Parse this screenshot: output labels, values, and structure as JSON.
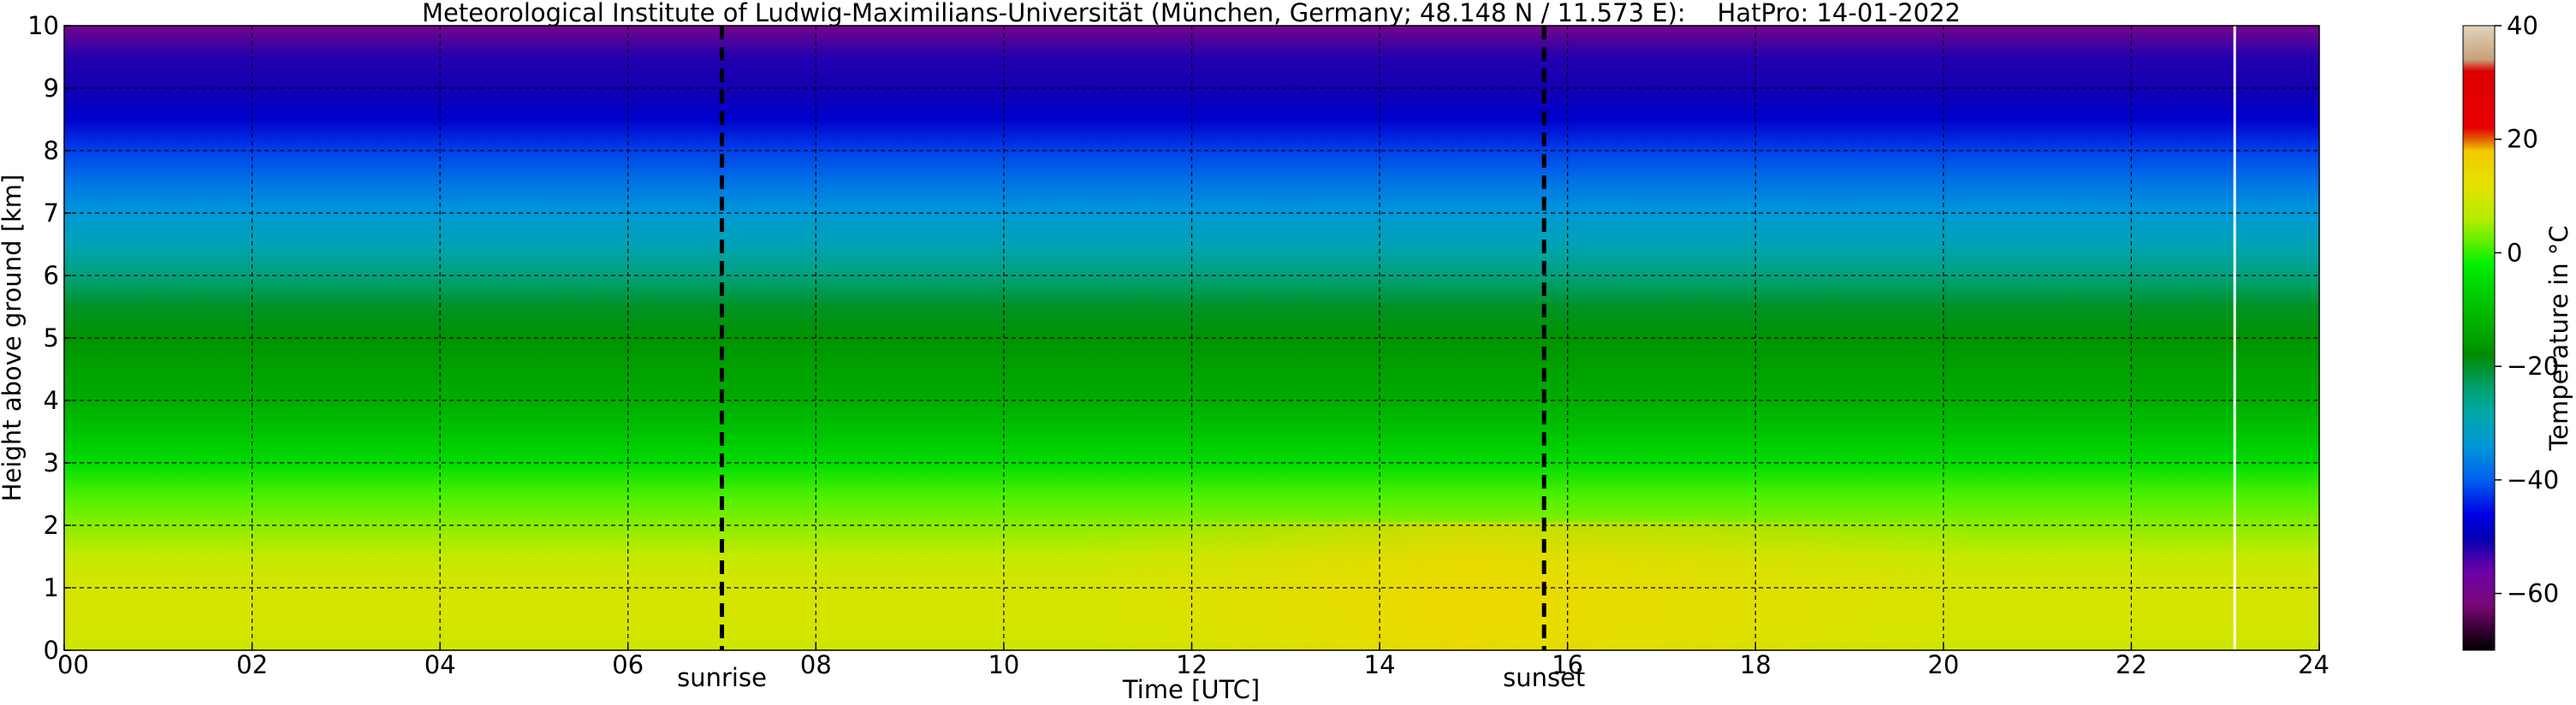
{
  "chart_data": {
    "type": "heatmap",
    "title": "Meteorological Institute of Ludwig-Maximilians-Universität (München, Germany; 48.148 N / 11.573 E):    HatPro: 14-01-2022",
    "xlabel": "Time [UTC]",
    "ylabel": "Height above ground [km]",
    "xlim": [
      0,
      24
    ],
    "ylim": [
      0,
      10
    ],
    "x_ticks": [
      0,
      2,
      4,
      6,
      8,
      10,
      12,
      14,
      16,
      18,
      20,
      22,
      24
    ],
    "x_tick_labels": [
      "00",
      "02",
      "04",
      "06",
      "08",
      "10",
      "12",
      "14",
      "16",
      "18",
      "20",
      "22",
      "24"
    ],
    "y_ticks": [
      0,
      1,
      2,
      3,
      4,
      5,
      6,
      7,
      8,
      9,
      10
    ],
    "y_tick_labels": [
      "0",
      "1",
      "2",
      "3",
      "4",
      "5",
      "6",
      "7",
      "8",
      "9",
      "10"
    ],
    "grid": true,
    "data_end_time": 23.1,
    "annotations": [
      {
        "label": "sunrise",
        "x": 7.0
      },
      {
        "label": "sunset",
        "x": 15.75
      }
    ],
    "colorbar": {
      "label": "Temperature in $^\\circ$C",
      "range": [
        -70,
        40
      ],
      "ticks": [
        40,
        20,
        0,
        -20,
        -40,
        -60
      ],
      "tick_labels": [
        "40",
        "20",
        "0",
        "−20",
        "−40",
        "−60"
      ],
      "stops": [
        {
          "value": -70,
          "color": "#000000"
        },
        {
          "value": -66,
          "color": "#3c0038"
        },
        {
          "value": -62,
          "color": "#7a0878"
        },
        {
          "value": -56,
          "color": "#6b00a8"
        },
        {
          "value": -50,
          "color": "#0000b4"
        },
        {
          "value": -46,
          "color": "#0000e6"
        },
        {
          "value": -40,
          "color": "#0060ec"
        },
        {
          "value": -34,
          "color": "#0098d8"
        },
        {
          "value": -28,
          "color": "#00a8a4"
        },
        {
          "value": -24,
          "color": "#00a070"
        },
        {
          "value": -18,
          "color": "#008c00"
        },
        {
          "value": -14,
          "color": "#00a800"
        },
        {
          "value": -8,
          "color": "#00c800"
        },
        {
          "value": -2,
          "color": "#00f000"
        },
        {
          "value": 2,
          "color": "#60f000"
        },
        {
          "value": 6,
          "color": "#b4ec00"
        },
        {
          "value": 12,
          "color": "#e6e200"
        },
        {
          "value": 18,
          "color": "#f0c800"
        },
        {
          "value": 20,
          "color": "#e06000"
        },
        {
          "value": 22,
          "color": "#e80000"
        },
        {
          "value": 32,
          "color": "#dc0000"
        },
        {
          "value": 34,
          "color": "#c8a07a"
        },
        {
          "value": 40,
          "color": "#e0d4bc"
        }
      ]
    },
    "profile_km_degC": [
      [
        0,
        9
      ],
      [
        0.5,
        10
      ],
      [
        1,
        10
      ],
      [
        1.5,
        8
      ],
      [
        2,
        4
      ],
      [
        2.5,
        1
      ],
      [
        3,
        -5
      ],
      [
        3.5,
        -9
      ],
      [
        4,
        -13
      ],
      [
        4.5,
        -15
      ],
      [
        5,
        -17
      ],
      [
        5.5,
        -20
      ],
      [
        6,
        -25
      ],
      [
        6.5,
        -30
      ],
      [
        7,
        -34
      ],
      [
        7.5,
        -38
      ],
      [
        8,
        -42
      ],
      [
        8.5,
        -48
      ],
      [
        9,
        -51
      ],
      [
        9.5,
        -52
      ],
      [
        10,
        -60
      ]
    ]
  }
}
